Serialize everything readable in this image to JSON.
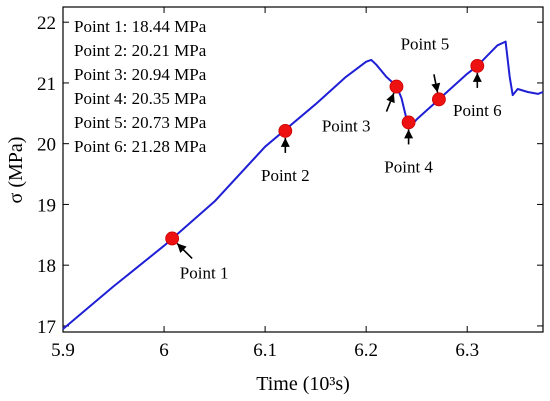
{
  "chart_data": {
    "type": "line",
    "xlabel": "Time (10³s)",
    "ylabel": "σ (MPa)",
    "xlim": [
      5.9,
      6.375
    ],
    "ylim": [
      16.9,
      22.25
    ],
    "x_ticks": [
      "5.9",
      "6",
      "6.1",
      "6.2",
      "6.3"
    ],
    "y_ticks": [
      "17",
      "18",
      "19",
      "20",
      "21",
      "22"
    ],
    "grid": false,
    "line_color": "#1f1fd6",
    "marker_color": "#ee1111",
    "series": [
      {
        "x": [
          5.9,
          5.95,
          6.0,
          6.05,
          6.1,
          6.15,
          6.18,
          6.2,
          6.205,
          6.21,
          6.22,
          6.23,
          6.235,
          6.24,
          6.245,
          6.25,
          6.26,
          6.27,
          6.28,
          6.29,
          6.3,
          6.31,
          6.32,
          6.33,
          6.338,
          6.342,
          6.345,
          6.35,
          6.36,
          6.37,
          6.375
        ],
        "y": [
          16.95,
          17.65,
          18.32,
          19.05,
          19.95,
          20.65,
          21.1,
          21.35,
          21.38,
          21.3,
          21.1,
          20.95,
          20.75,
          20.4,
          20.3,
          20.4,
          20.55,
          20.7,
          20.85,
          21.0,
          21.15,
          21.28,
          21.45,
          21.62,
          21.68,
          21.1,
          20.8,
          20.9,
          20.85,
          20.82,
          20.85
        ]
      }
    ],
    "points": [
      {
        "label": "Point 1",
        "x": 6.008,
        "y": 18.44,
        "annotation_side": "below-right"
      },
      {
        "label": "Point 2",
        "x": 6.12,
        "y": 20.21,
        "annotation_side": "below"
      },
      {
        "label": "Point 3",
        "x": 6.23,
        "y": 20.94,
        "annotation_side": "left-below"
      },
      {
        "label": "Point 4",
        "x": 6.242,
        "y": 20.35,
        "annotation_side": "below"
      },
      {
        "label": "Point 5",
        "x": 6.272,
        "y": 20.73,
        "annotation_side": "above"
      },
      {
        "label": "Point 6",
        "x": 6.31,
        "y": 21.28,
        "annotation_side": "below"
      }
    ],
    "value_legend": [
      "Point 1: 18.44 MPa",
      "Point 2: 20.21 MPa",
      "Point 3: 20.94 MPa",
      "Point 4: 20.35 MPa",
      "Point 5: 20.73 MPa",
      "Point 6: 21.28 MPa"
    ]
  }
}
